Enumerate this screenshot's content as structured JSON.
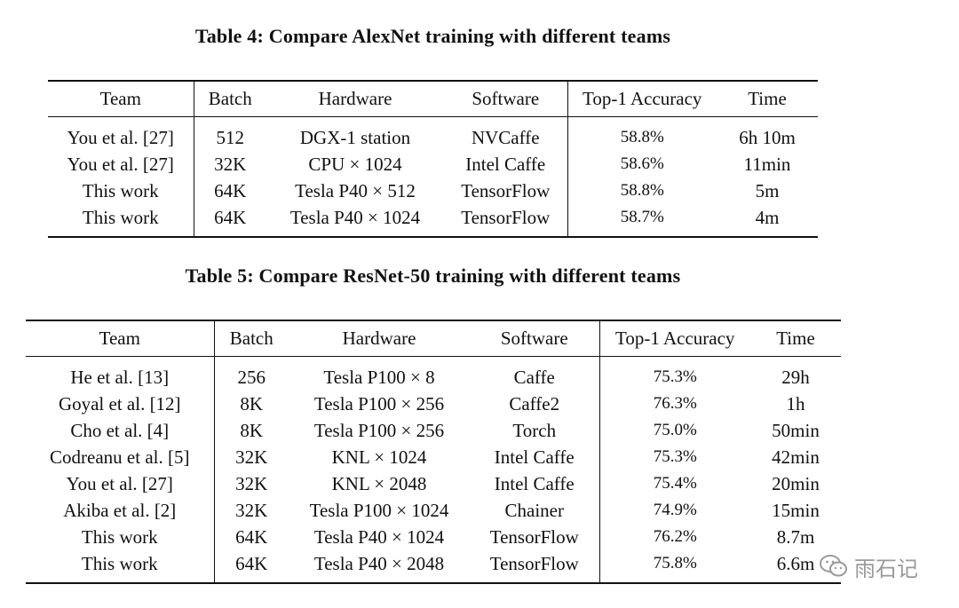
{
  "table4": {
    "caption": "Table 4: Compare AlexNet training with different teams",
    "headers": [
      "Team",
      "Batch",
      "Hardware",
      "Software",
      "Top-1 Accuracy",
      "Time"
    ],
    "rows": [
      {
        "team": "You et al. [27]",
        "batch": "512",
        "hardware": "DGX-1 station",
        "software": "NVCaffe",
        "accuracy": "58.8%",
        "time": "6h 10m"
      },
      {
        "team": "You et al. [27]",
        "batch": "32K",
        "hardware": "CPU × 1024",
        "software": "Intel Caffe",
        "accuracy": "58.6%",
        "time": "11min"
      },
      {
        "team": "This work",
        "batch": "64K",
        "hardware": "Tesla P40 × 512",
        "software": "TensorFlow",
        "accuracy": "58.8%",
        "time": "5m"
      },
      {
        "team": "This work",
        "batch": "64K",
        "hardware": "Tesla P40 × 1024",
        "software": "TensorFlow",
        "accuracy": "58.7%",
        "time": "4m"
      }
    ]
  },
  "table5": {
    "caption": "Table 5: Compare ResNet-50 training with different teams",
    "headers": [
      "Team",
      "Batch",
      "Hardware",
      "Software",
      "Top-1 Accuracy",
      "Time"
    ],
    "rows": [
      {
        "team": "He et al. [13]",
        "batch": "256",
        "hardware": "Tesla P100 × 8",
        "software": "Caffe",
        "accuracy": "75.3%",
        "time": "29h"
      },
      {
        "team": "Goyal et al. [12]",
        "batch": "8K",
        "hardware": "Tesla P100 × 256",
        "software": "Caffe2",
        "accuracy": "76.3%",
        "time": "1h"
      },
      {
        "team": "Cho et al. [4]",
        "batch": "8K",
        "hardware": "Tesla P100 × 256",
        "software": "Torch",
        "accuracy": "75.0%",
        "time": "50min"
      },
      {
        "team": "Codreanu et al. [5]",
        "batch": "32K",
        "hardware": "KNL × 1024",
        "software": "Intel Caffe",
        "accuracy": "75.3%",
        "time": "42min"
      },
      {
        "team": "You et al. [27]",
        "batch": "32K",
        "hardware": "KNL × 2048",
        "software": "Intel Caffe",
        "accuracy": "75.4%",
        "time": "20min"
      },
      {
        "team": "Akiba et al. [2]",
        "batch": "32K",
        "hardware": "Tesla P100 × 1024",
        "software": "Chainer",
        "accuracy": "74.9%",
        "time": "15min"
      },
      {
        "team": "This work",
        "batch": "64K",
        "hardware": "Tesla P40 × 1024",
        "software": "TensorFlow",
        "accuracy": "76.2%",
        "time": "8.7m"
      },
      {
        "team": "This work",
        "batch": "64K",
        "hardware": "Tesla P40 × 2048",
        "software": "TensorFlow",
        "accuracy": "75.8%",
        "time": "6.6m"
      }
    ]
  },
  "watermark": {
    "text": "雨石记",
    "icon": "wechat-icon"
  }
}
